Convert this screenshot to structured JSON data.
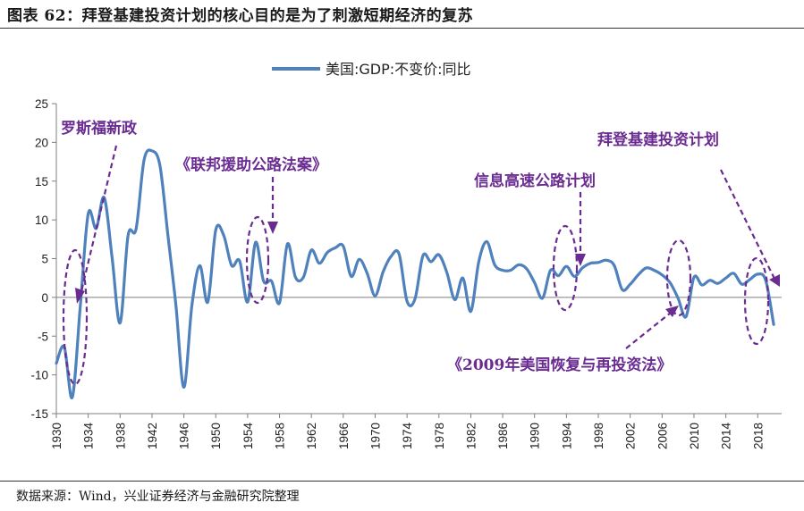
{
  "header": {
    "title": "图表 62：拜登基建投资计划的核心目的是为了刺激短期经济的复苏"
  },
  "footer": {
    "source": "数据来源：Wind，兴业证券经济与金融研究院整理"
  },
  "colors": {
    "line": "#4f81bd",
    "annotation": "#6a2c91",
    "axis": "#7f7f7f"
  },
  "chart_data": {
    "type": "line",
    "title": "图表 62：拜登基建投资计划的核心目的是为了刺激短期经济的复苏",
    "xlabel": "",
    "ylabel": "",
    "ylim": [
      -15,
      25
    ],
    "xlim": [
      1930,
      2021
    ],
    "yticks": [
      -15,
      -10,
      -5,
      0,
      5,
      10,
      15,
      20,
      25
    ],
    "xticks": [
      "1930",
      "1934",
      "1938",
      "1942",
      "1946",
      "1950",
      "1954",
      "1958",
      "1962",
      "1966",
      "1970",
      "1974",
      "1978",
      "1982",
      "1986",
      "1990",
      "1994",
      "1998",
      "2002",
      "2006",
      "2010",
      "2014",
      "2018"
    ],
    "legend": {
      "position": "top-center",
      "entries": [
        "美国:GDP:不变价:同比"
      ]
    },
    "series": [
      {
        "name": "美国:GDP:不变价:同比",
        "x": [
          1930,
          1931,
          1932,
          1933,
          1934,
          1935,
          1936,
          1937,
          1938,
          1939,
          1940,
          1941,
          1942,
          1943,
          1944,
          1945,
          1946,
          1947,
          1948,
          1949,
          1950,
          1951,
          1952,
          1953,
          1954,
          1955,
          1956,
          1957,
          1958,
          1959,
          1960,
          1961,
          1962,
          1963,
          1964,
          1965,
          1966,
          1967,
          1968,
          1969,
          1970,
          1971,
          1972,
          1973,
          1974,
          1975,
          1976,
          1977,
          1978,
          1979,
          1980,
          1981,
          1982,
          1983,
          1984,
          1985,
          1986,
          1987,
          1988,
          1989,
          1990,
          1991,
          1992,
          1993,
          1994,
          1995,
          1996,
          1997,
          1998,
          1999,
          2000,
          2001,
          2002,
          2003,
          2004,
          2005,
          2006,
          2007,
          2008,
          2009,
          2010,
          2011,
          2012,
          2013,
          2014,
          2015,
          2016,
          2017,
          2018,
          2019,
          2020
        ],
        "values": [
          -8.5,
          -6.4,
          -12.9,
          -1.2,
          10.8,
          8.9,
          12.9,
          5.1,
          -3.3,
          8.0,
          8.8,
          17.7,
          18.9,
          17.0,
          8.0,
          -1.0,
          -11.6,
          -1.1,
          4.1,
          -0.6,
          8.7,
          8.0,
          4.1,
          4.7,
          -0.6,
          7.1,
          2.1,
          2.1,
          -0.7,
          6.9,
          2.6,
          2.6,
          6.1,
          4.4,
          5.8,
          6.4,
          6.6,
          2.7,
          4.9,
          3.1,
          0.2,
          3.3,
          5.3,
          5.6,
          -0.5,
          -0.2,
          5.4,
          4.6,
          5.5,
          3.2,
          -0.3,
          2.5,
          -1.8,
          4.6,
          7.2,
          4.2,
          3.5,
          3.5,
          4.2,
          3.7,
          1.9,
          -0.1,
          3.5,
          2.8,
          4.0,
          2.7,
          3.8,
          4.4,
          4.5,
          4.8,
          4.1,
          1.0,
          1.7,
          2.9,
          3.8,
          3.5,
          2.9,
          1.9,
          -0.1,
          -2.5,
          2.6,
          1.6,
          2.2,
          1.8,
          2.5,
          3.1,
          1.7,
          2.3,
          3.0,
          2.2,
          -3.5
        ]
      }
    ],
    "annotations": [
      {
        "text": "罗斯福新政",
        "x": 1933
      },
      {
        "text": "《联邦援助公路法案》",
        "x": 1956
      },
      {
        "text": "信息高速公路计划",
        "x": 1995
      },
      {
        "text": "拜登基建投资计划",
        "x": 2020
      },
      {
        "text": "《2009年美国恢复与再投资法》",
        "x": 2009
      }
    ]
  }
}
